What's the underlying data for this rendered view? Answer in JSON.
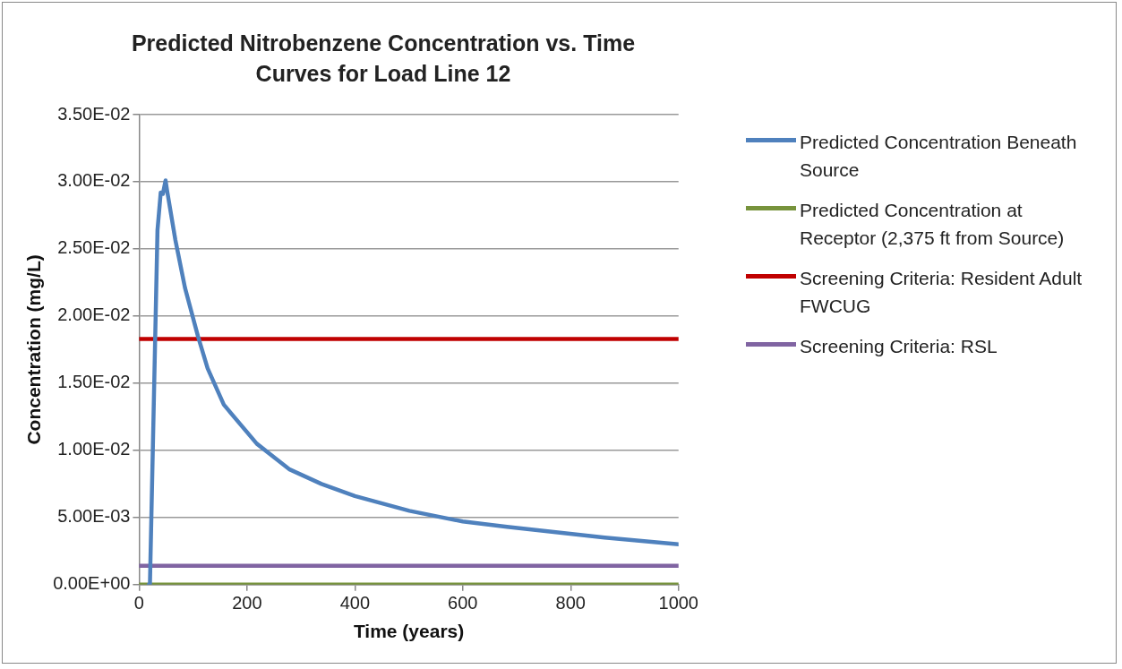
{
  "chart_data": {
    "type": "line",
    "title": "Predicted Nitrobenzene Concentration vs. Time Curves for Load Line 12",
    "xlabel": "Time (years)",
    "ylabel": "Concentration (mg/L)",
    "series": [
      {
        "name": "Predicted Concentration Beneath Source",
        "color": "#4f81bd",
        "x": [
          18,
          20,
          34,
          40,
          44,
          49,
          52,
          67,
          85,
          109,
          127,
          157,
          218,
          278,
          338,
          400,
          501,
          600,
          682,
          863,
          1000
        ],
        "values": [
          0,
          0,
          0.0264,
          0.0292,
          0.0291,
          0.0301,
          0.0293,
          0.0257,
          0.0221,
          0.0185,
          0.0161,
          0.0134,
          0.0105,
          0.0086,
          0.0075,
          0.0066,
          0.0055,
          0.0047,
          0.0043,
          0.0035,
          0.003
        ]
      },
      {
        "name": "Predicted Concentration at Receptor (2,375 ft from Source)",
        "color": "#77933c",
        "x": [
          0,
          1000
        ],
        "values": [
          0,
          0
        ]
      },
      {
        "name": "Screening Criteria:  Resident Adult FWCUG",
        "color": "#c00000",
        "x": [
          0,
          1000
        ],
        "values": [
          0.0183,
          0.0183
        ]
      },
      {
        "name": "Screening Criteria:  RSL",
        "color": "#8064a2",
        "x": [
          0,
          1000
        ],
        "values": [
          0.0014,
          0.0014
        ]
      }
    ],
    "xlim": [
      0,
      1000
    ],
    "xticks": [
      0,
      200,
      400,
      600,
      800,
      1000
    ],
    "ylim": [
      0,
      0.035
    ],
    "yticks": [
      {
        "value": 0,
        "label": "0.00E+00"
      },
      {
        "value": 0.005,
        "label": "5.00E-03"
      },
      {
        "value": 0.01,
        "label": "1.00E-02"
      },
      {
        "value": 0.015,
        "label": "1.50E-02"
      },
      {
        "value": 0.02,
        "label": "2.00E-02"
      },
      {
        "value": 0.025,
        "label": "2.50E-02"
      },
      {
        "value": 0.03,
        "label": "3.00E-02"
      },
      {
        "value": 0.035,
        "label": "3.50E-02"
      }
    ],
    "grid": "y",
    "legend": "right",
    "marker": "none",
    "line_style": "solid"
  }
}
